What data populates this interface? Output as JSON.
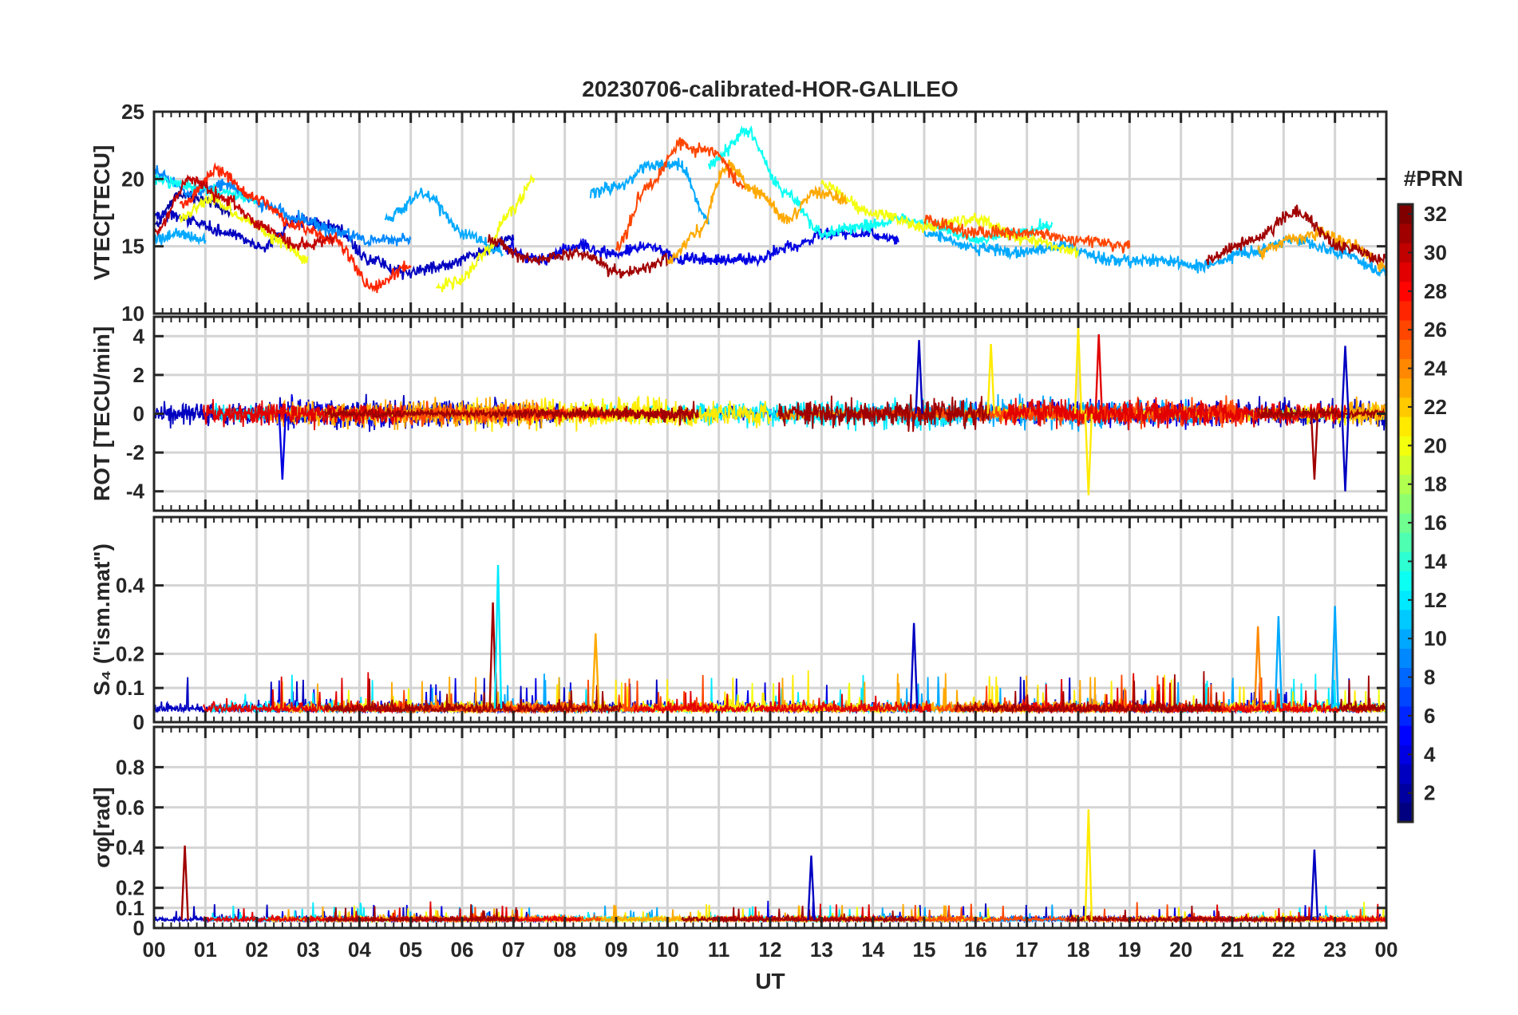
{
  "chart_data": [
    {
      "type": "line",
      "panel": "vtec",
      "title": "20230706-calibrated-HOR-GALILEO",
      "ylabel": "VTEC[TECU]",
      "xlabel": "",
      "ylim": [
        10,
        25
      ],
      "yticks": [
        10,
        15,
        20,
        25
      ],
      "ytick_labels": [
        "10",
        "15",
        "20",
        "25"
      ],
      "xlim": [
        0,
        24
      ],
      "grid": true,
      "series_shape": "smooth",
      "approx_trends": [
        {
          "prn": 2,
          "start_hour": 0.0,
          "end_hour": 1.5,
          "values": [
            16.5,
            18.8,
            18.5,
            17.5
          ]
        },
        {
          "prn": 3,
          "start_hour": 0.0,
          "end_hour": 7.0,
          "values": [
            17.5,
            17.0,
            16.0,
            15.0,
            17.0,
            16.5,
            14.0,
            13.0,
            13.5,
            14.5,
            15.5
          ]
        },
        {
          "prn": 4,
          "start_hour": 6.8,
          "end_hour": 14.5,
          "values": [
            15.0,
            14.0,
            15.0,
            14.5,
            15.0,
            14.0,
            14.0,
            14.0,
            15.0,
            16.0,
            16.0,
            15.5
          ]
        },
        {
          "prn": 9,
          "start_hour": 0.0,
          "end_hour": 5.0,
          "values": [
            20.5,
            19.0,
            19.5,
            18.0,
            17.0,
            16.0,
            15.5,
            15.5
          ]
        },
        {
          "prn": 10,
          "start_hour": 0.0,
          "end_hour": 1.0,
          "values": [
            15.5,
            16.0,
            15.5
          ]
        },
        {
          "prn": 10,
          "start_hour": 4.5,
          "end_hour": 6.8,
          "values": [
            17.0,
            19.0,
            16.0,
            14.5
          ]
        },
        {
          "prn": 10,
          "start_hour": 8.5,
          "end_hour": 10.8,
          "values": [
            19.0,
            19.5,
            21.0,
            21.0,
            17.0
          ]
        },
        {
          "prn": 10,
          "start_hour": 15.0,
          "end_hour": 24.0,
          "values": [
            16.0,
            15.0,
            14.5,
            15.0,
            14.0,
            14.0,
            13.5,
            14.5,
            15.5,
            14.5,
            13.0
          ]
        },
        {
          "prn": 13,
          "start_hour": 10.8,
          "end_hour": 17.5,
          "values": [
            21.0,
            23.5,
            19.0,
            16.0,
            16.5,
            17.0,
            16.5,
            15.5,
            16.0,
            16.5
          ]
        },
        {
          "prn": 13,
          "start_hour": 0.0,
          "end_hour": 2.0,
          "values": [
            20.0,
            19.5,
            19.0,
            18.5
          ]
        },
        {
          "prn": 20,
          "start_hour": 0.5,
          "end_hour": 3.0,
          "values": [
            17.0,
            18.5,
            17.0,
            15.5,
            14.0
          ]
        },
        {
          "prn": 20,
          "start_hour": 5.5,
          "end_hour": 7.4,
          "values": [
            12.0,
            12.5,
            14.5,
            17.5,
            20.0
          ]
        },
        {
          "prn": 20,
          "start_hour": 13.0,
          "end_hour": 18.0,
          "values": [
            19.5,
            17.5,
            16.5,
            17.0,
            15.5,
            14.5
          ]
        },
        {
          "prn": 23,
          "start_hour": 10.0,
          "end_hour": 13.5,
          "values": [
            14.0,
            16.0,
            21.0,
            19.0,
            17.0,
            19.0,
            18.5
          ]
        },
        {
          "prn": 23,
          "start_hour": 21.5,
          "end_hour": 24.0,
          "values": [
            14.5,
            15.5,
            16.0,
            15.0,
            13.5
          ]
        },
        {
          "prn": 26,
          "start_hour": 9.0,
          "end_hour": 11.5,
          "values": [
            15.0,
            19.5,
            22.5,
            22.0,
            19.5
          ]
        },
        {
          "prn": 26,
          "start_hour": 15.0,
          "end_hour": 19.0,
          "values": [
            17.0,
            16.0,
            16.0,
            15.5,
            15.0
          ]
        },
        {
          "prn": 27,
          "start_hour": 0.5,
          "end_hour": 5.0,
          "values": [
            18.0,
            20.5,
            18.5,
            16.5,
            15.5,
            12.0,
            13.5
          ]
        },
        {
          "prn": 30,
          "start_hour": 0.0,
          "end_hour": 3.5,
          "values": [
            16.0,
            20.0,
            18.5,
            16.5,
            15.0,
            15.5
          ]
        },
        {
          "prn": 31,
          "start_hour": 6.5,
          "end_hour": 10.0,
          "values": [
            15.5,
            14.0,
            14.5,
            13.0,
            14.0
          ]
        },
        {
          "prn": 31,
          "start_hour": 20.5,
          "end_hour": 24.0,
          "values": [
            14.0,
            15.5,
            17.5,
            15.0,
            14.0
          ]
        }
      ]
    },
    {
      "type": "line",
      "panel": "rot",
      "ylabel": "ROT [TECU/min]",
      "ylim": [
        -5,
        5
      ],
      "yticks": [
        -4,
        -2,
        0,
        2,
        4
      ],
      "ytick_labels": [
        "-4",
        "-2",
        "0",
        "2",
        "4"
      ],
      "xlim": [
        0,
        24
      ],
      "grid": true,
      "series_shape": "noisy around 0",
      "notable_spikes": [
        {
          "hour": 2.5,
          "value": -3.4,
          "prn": 4
        },
        {
          "hour": 14.9,
          "value": 3.8,
          "prn": 3
        },
        {
          "hour": 16.3,
          "value": 3.6,
          "prn": 21
        },
        {
          "hour": 18.0,
          "value": 4.5,
          "prn": 21
        },
        {
          "hour": 18.2,
          "value": -4.2,
          "prn": 21
        },
        {
          "hour": 18.4,
          "value": 4.1,
          "prn": 29
        },
        {
          "hour": 22.6,
          "value": -3.4,
          "prn": 31
        },
        {
          "hour": 23.2,
          "value": 3.5,
          "prn": 3
        },
        {
          "hour": 23.2,
          "value": -4.0,
          "prn": 3
        }
      ]
    },
    {
      "type": "line",
      "panel": "s4",
      "ylabel": "S₄ (\"ism.mat\")",
      "ylim": [
        0,
        0.6
      ],
      "yticks": [
        0,
        0.1,
        0.2,
        0.4
      ],
      "ytick_labels": [
        "0",
        "0.1",
        "0.2",
        "0.4"
      ],
      "xlim": [
        0,
        24
      ],
      "grid": true,
      "series_shape": "low baseline with bursts",
      "notable_spikes": [
        {
          "hour": 6.6,
          "value": 0.35,
          "prn": 31
        },
        {
          "hour": 6.7,
          "value": 0.46,
          "prn": 12
        },
        {
          "hour": 8.6,
          "value": 0.26,
          "prn": 23
        },
        {
          "hour": 14.8,
          "value": 0.29,
          "prn": 3
        },
        {
          "hour": 21.5,
          "value": 0.28,
          "prn": 24
        },
        {
          "hour": 21.9,
          "value": 0.31,
          "prn": 10
        },
        {
          "hour": 23.0,
          "value": 0.34,
          "prn": 10
        }
      ]
    },
    {
      "type": "line",
      "panel": "sigma_phi",
      "ylabel": "σφ[rad]",
      "ylim": [
        0,
        1.0
      ],
      "yticks": [
        0,
        0.1,
        0.2,
        0.4,
        0.6,
        0.8
      ],
      "ytick_labels": [
        "0",
        "0.1",
        "0.2",
        "0.4",
        "0.6",
        "0.8"
      ],
      "xlim": [
        0,
        24
      ],
      "xlabel": "UT",
      "xticks": [
        "00",
        "01",
        "02",
        "03",
        "04",
        "05",
        "06",
        "07",
        "08",
        "09",
        "10",
        "11",
        "12",
        "13",
        "14",
        "15",
        "16",
        "17",
        "18",
        "19",
        "20",
        "21",
        "22",
        "23",
        "00"
      ],
      "grid": true,
      "series_shape": "low baseline with bursts",
      "notable_spikes": [
        {
          "hour": 0.6,
          "value": 0.41,
          "prn": 31
        },
        {
          "hour": 12.8,
          "value": 0.36,
          "prn": 3
        },
        {
          "hour": 18.2,
          "value": 0.59,
          "prn": 21
        },
        {
          "hour": 22.6,
          "value": 0.39,
          "prn": 3
        }
      ]
    }
  ],
  "colorbar": {
    "title": "#PRN",
    "min": 1,
    "max": 32,
    "ticks": [
      2,
      4,
      6,
      8,
      10,
      12,
      14,
      16,
      18,
      20,
      22,
      24,
      26,
      28,
      30,
      32
    ],
    "tick_labels": [
      "2",
      "4",
      "6",
      "8",
      "10",
      "12",
      "14",
      "16",
      "18",
      "20",
      "22",
      "24",
      "26",
      "28",
      "30",
      "32"
    ],
    "colormap": "jet"
  }
}
